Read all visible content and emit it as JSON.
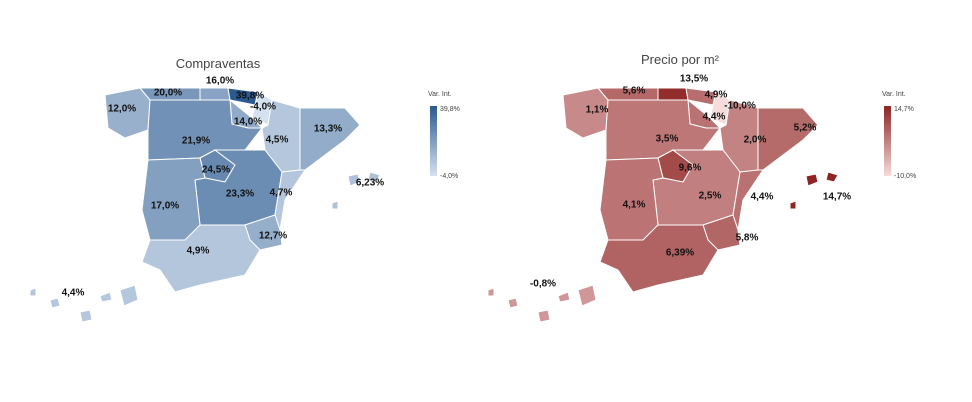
{
  "maps": [
    {
      "title": "Compraventas",
      "color_low": "#d6e1ef",
      "color_high": "#2b5a8f",
      "legend": {
        "title": "Var. Int.",
        "max": {
          "value": 39.8,
          "label": "39,8%"
        },
        "min": {
          "value": -4.0,
          "label": "-4,0%"
        }
      },
      "regions": [
        {
          "value": 12.0,
          "label": "12,0%"
        },
        {
          "value": 20.0,
          "label": "20,0%"
        },
        {
          "value": 16.0,
          "label": "16,0%"
        },
        {
          "value": 39.8,
          "label": "39,8%"
        },
        {
          "value": -4.0,
          "label": "-4,0%"
        },
        {
          "value": 14.0,
          "label": "14,0%"
        },
        {
          "value": 4.5,
          "label": "4,5%"
        },
        {
          "value": 13.3,
          "label": "13,3%"
        },
        {
          "value": 21.9,
          "label": "21,9%"
        },
        {
          "value": 24.5,
          "label": "24,5%"
        },
        {
          "value": 23.3,
          "label": "23,3%"
        },
        {
          "value": 4.7,
          "label": "4,7%"
        },
        {
          "value": 17.0,
          "label": "17,0%"
        },
        {
          "value": 12.7,
          "label": "12,7%"
        },
        {
          "value": 4.9,
          "label": "4,9%"
        },
        {
          "value": 6.23,
          "label": "6,23%"
        },
        {
          "value": 4.4,
          "label": "4,4%"
        }
      ]
    },
    {
      "title": "Precio por m²",
      "color_low": "#f6dcdc",
      "color_high": "#8e2424",
      "legend": {
        "title": "Var. Int.",
        "max": {
          "value": 14.7,
          "label": "14,7%"
        },
        "min": {
          "value": -10.0,
          "label": "-10,0%"
        }
      },
      "regions": [
        {
          "value": 1.1,
          "label": "1,1%"
        },
        {
          "value": 5.6,
          "label": "5,6%"
        },
        {
          "value": 13.5,
          "label": "13,5%"
        },
        {
          "value": 4.9,
          "label": "4,9%"
        },
        {
          "value": -10.0,
          "label": "-10,0%"
        },
        {
          "value": 4.4,
          "label": "4,4%"
        },
        {
          "value": 2.0,
          "label": "2,0%"
        },
        {
          "value": 5.2,
          "label": "5,2%"
        },
        {
          "value": 3.5,
          "label": "3,5%"
        },
        {
          "value": 9.6,
          "label": "9,6%"
        },
        {
          "value": 2.5,
          "label": "2,5%"
        },
        {
          "value": 4.4,
          "label": "4,4%"
        },
        {
          "value": 4.1,
          "label": "4,1%"
        },
        {
          "value": 5.8,
          "label": "5,8%"
        },
        {
          "value": 6.39,
          "label": "6,39%"
        },
        {
          "value": 14.7,
          "label": "14,7%"
        },
        {
          "value": -0.8,
          "label": "-0,8%"
        }
      ]
    }
  ]
}
